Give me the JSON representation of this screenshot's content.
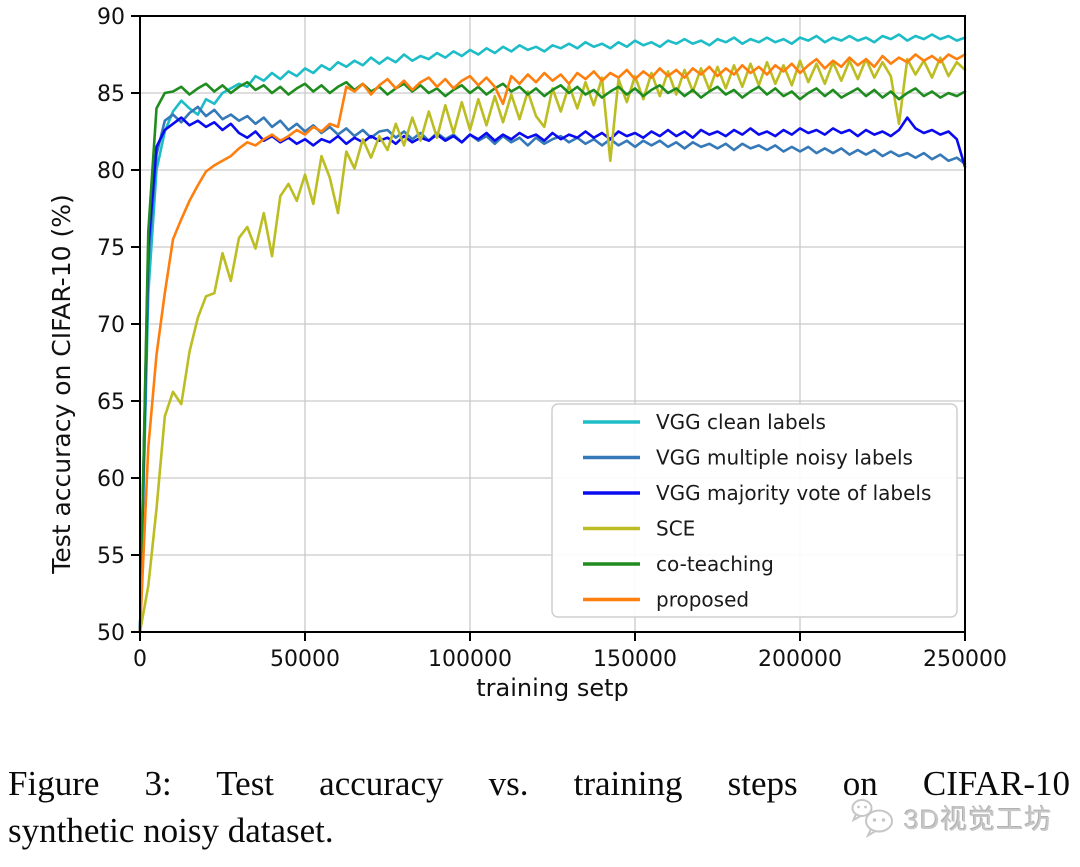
{
  "chart_data": {
    "type": "line",
    "title": "",
    "xlabel": "training setp",
    "ylabel": "Test accuracy on CIFAR-10 (%)",
    "xlim": [
      0,
      250000
    ],
    "ylim": [
      50,
      90
    ],
    "xticks": [
      0,
      50000,
      100000,
      150000,
      200000,
      250000
    ],
    "yticks": [
      50,
      55,
      60,
      65,
      70,
      75,
      80,
      85,
      90
    ],
    "grid": true,
    "grid_color": "#c9c9c9",
    "legend_position": "lower-right-inside",
    "x_step": 2500,
    "series": [
      {
        "name": "VGG clean labels",
        "color": "#1dbdc8",
        "values": [
          50,
          72,
          80,
          82.5,
          83.8,
          84.5,
          84.0,
          83.6,
          84.6,
          84.3,
          85.0,
          85.3,
          85.6,
          85.4,
          86.1,
          85.8,
          86.3,
          85.9,
          86.4,
          86.1,
          86.6,
          86.3,
          86.8,
          86.5,
          87.0,
          86.7,
          87.1,
          86.8,
          87.3,
          86.9,
          87.3,
          87.0,
          87.5,
          87.1,
          87.4,
          87.2,
          87.6,
          87.3,
          87.7,
          87.4,
          87.8,
          87.5,
          87.9,
          87.6,
          88.0,
          87.7,
          88.1,
          87.8,
          88.0,
          87.7,
          88.1,
          87.9,
          88.2,
          87.9,
          88.3,
          88.0,
          88.2,
          87.9,
          88.3,
          88.0,
          88.4,
          88.1,
          88.3,
          88.0,
          88.4,
          88.2,
          88.5,
          88.2,
          88.4,
          88.1,
          88.5,
          88.3,
          88.6,
          88.2,
          88.5,
          88.3,
          88.6,
          88.3,
          88.5,
          88.2,
          88.6,
          88.4,
          88.7,
          88.3,
          88.6,
          88.4,
          88.7,
          88.4,
          88.6,
          88.3,
          88.7,
          88.5,
          88.8,
          88.4,
          88.7,
          88.5,
          88.8,
          88.5,
          88.7,
          88.4,
          88.6
        ]
      },
      {
        "name": "VGG multiple noisy labels",
        "color": "#3579b8",
        "values": [
          50,
          74,
          81,
          83.2,
          83.6,
          83.1,
          83.7,
          84.1,
          83.5,
          83.9,
          83.3,
          83.6,
          83.2,
          83.5,
          83.0,
          83.4,
          82.8,
          83.2,
          82.6,
          83.0,
          82.5,
          82.9,
          82.4,
          82.8,
          82.3,
          82.7,
          82.2,
          82.6,
          82.1,
          82.5,
          82.6,
          82.1,
          82.5,
          82.0,
          82.4,
          81.9,
          82.4,
          82.0,
          82.3,
          81.8,
          82.3,
          81.9,
          82.2,
          81.7,
          82.2,
          81.8,
          82.1,
          81.6,
          82.1,
          81.7,
          82.0,
          82.2,
          81.8,
          82.1,
          81.7,
          82.0,
          81.6,
          82.0,
          81.6,
          81.9,
          81.5,
          81.9,
          81.6,
          81.9,
          81.5,
          81.8,
          81.4,
          81.8,
          81.5,
          81.7,
          81.4,
          81.7,
          81.3,
          81.7,
          81.4,
          81.6,
          81.3,
          81.6,
          81.2,
          81.5,
          81.2,
          81.5,
          81.1,
          81.4,
          81.1,
          81.4,
          81.0,
          81.3,
          81.0,
          81.3,
          80.9,
          81.2,
          80.9,
          81.1,
          80.8,
          81.1,
          80.7,
          81.0,
          80.6,
          80.8,
          80.4
        ]
      },
      {
        "name": "VGG majority vote of labels",
        "color": "#0b0bf0",
        "values": [
          50,
          75,
          81.5,
          82.6,
          83.0,
          83.4,
          82.9,
          83.2,
          82.8,
          83.1,
          82.6,
          83.0,
          82.4,
          82.1,
          82.5,
          81.9,
          82.2,
          81.8,
          82.1,
          81.7,
          82.0,
          81.6,
          82.0,
          81.8,
          82.2,
          81.7,
          82.1,
          81.8,
          82.2,
          81.9,
          82.1,
          81.7,
          82.2,
          81.8,
          82.1,
          81.9,
          82.3,
          81.9,
          82.2,
          81.8,
          82.3,
          82.0,
          82.4,
          81.9,
          82.3,
          82.0,
          82.4,
          82.1,
          82.3,
          81.9,
          82.4,
          82.0,
          82.3,
          82.1,
          82.5,
          82.1,
          82.4,
          82.0,
          82.5,
          82.2,
          82.4,
          82.1,
          82.5,
          82.2,
          82.6,
          82.2,
          82.5,
          82.1,
          82.6,
          82.3,
          82.5,
          82.2,
          82.6,
          82.3,
          82.7,
          82.3,
          82.5,
          82.2,
          82.6,
          82.3,
          82.7,
          82.4,
          82.6,
          82.3,
          82.7,
          82.4,
          82.6,
          82.2,
          82.6,
          82.3,
          82.5,
          82.2,
          82.6,
          83.4,
          82.7,
          82.4,
          82.6,
          82.3,
          82.5,
          82.0,
          80.2
        ]
      },
      {
        "name": "SCE",
        "color": "#bcbd22",
        "values": [
          50,
          53,
          58,
          64,
          65.6,
          64.8,
          68.2,
          70.4,
          71.8,
          72.0,
          74.6,
          72.8,
          75.6,
          76.3,
          74.9,
          77.2,
          74.4,
          78.3,
          79.1,
          78.0,
          79.7,
          77.8,
          80.9,
          79.5,
          77.2,
          81.2,
          80.1,
          82.0,
          80.8,
          82.2,
          81.3,
          83.0,
          81.6,
          83.4,
          81.9,
          83.8,
          82.1,
          84.2,
          82.4,
          84.4,
          82.6,
          84.6,
          82.9,
          84.8,
          83.1,
          84.9,
          83.3,
          85.1,
          83.5,
          82.8,
          85.3,
          83.8,
          85.5,
          84.0,
          85.7,
          84.2,
          86.0,
          80.6,
          85.9,
          84.4,
          86.1,
          84.6,
          86.3,
          84.8,
          86.4,
          84.9,
          86.5,
          85.1,
          86.6,
          85.2,
          86.7,
          85.3,
          86.8,
          85.4,
          86.9,
          85.5,
          87.0,
          85.6,
          86.8,
          85.5,
          87.1,
          85.7,
          86.9,
          85.6,
          87.0,
          85.8,
          87.1,
          85.9,
          87.2,
          86.0,
          87.0,
          86.1,
          83.0,
          87.2,
          86.2,
          87.1,
          86.0,
          87.3,
          86.1,
          87.0,
          86.5
        ]
      },
      {
        "name": "co-teaching",
        "color": "#1f8c1f",
        "values": [
          50,
          76,
          84,
          85.0,
          85.1,
          85.4,
          84.9,
          85.3,
          85.6,
          85.1,
          85.5,
          85.0,
          85.4,
          85.7,
          85.2,
          85.5,
          85.0,
          85.4,
          84.9,
          85.3,
          85.6,
          85.1,
          85.5,
          85.0,
          85.4,
          85.7,
          85.2,
          85.6,
          85.1,
          85.4,
          84.9,
          85.3,
          85.6,
          85.1,
          85.5,
          85.0,
          85.3,
          84.8,
          85.2,
          85.5,
          85.0,
          85.4,
          84.9,
          85.3,
          85.6,
          85.1,
          85.4,
          84.9,
          85.3,
          84.8,
          85.2,
          85.5,
          85.0,
          85.4,
          84.9,
          85.2,
          84.7,
          85.1,
          85.4,
          84.9,
          85.3,
          84.8,
          85.2,
          85.5,
          85.0,
          85.3,
          84.8,
          85.2,
          84.7,
          85.1,
          85.4,
          84.9,
          85.2,
          84.7,
          85.1,
          85.4,
          84.9,
          85.3,
          84.8,
          85.1,
          84.6,
          85.0,
          85.3,
          84.8,
          85.2,
          84.7,
          85.0,
          85.3,
          84.8,
          85.2,
          84.7,
          85.1,
          84.6,
          85.0,
          85.3,
          84.8,
          85.1,
          84.7,
          85.0,
          84.8,
          85.1
        ]
      },
      {
        "name": "proposed",
        "color": "#ff7f0e",
        "values": [
          50,
          62,
          68,
          72,
          75.5,
          76.8,
          78.0,
          79.0,
          79.9,
          80.3,
          80.6,
          80.9,
          81.4,
          81.8,
          81.6,
          82.0,
          82.3,
          81.9,
          82.2,
          82.6,
          82.3,
          82.8,
          82.5,
          83.0,
          82.8,
          85.4,
          85.1,
          85.6,
          84.9,
          85.5,
          85.9,
          85.3,
          85.8,
          85.2,
          85.7,
          86.0,
          85.4,
          85.9,
          85.3,
          85.8,
          86.1,
          85.5,
          86.0,
          85.4,
          84.3,
          86.1,
          85.6,
          86.2,
          85.7,
          86.3,
          85.8,
          86.2,
          85.6,
          86.3,
          85.9,
          86.4,
          85.8,
          86.3,
          86.0,
          86.5,
          85.9,
          86.4,
          86.0,
          86.6,
          86.1,
          86.5,
          86.0,
          86.6,
          86.2,
          86.7,
          86.1,
          86.6,
          86.2,
          86.8,
          86.3,
          86.7,
          86.2,
          86.8,
          86.4,
          86.9,
          86.3,
          86.8,
          87.2,
          86.6,
          87.1,
          86.7,
          87.3,
          86.8,
          87.2,
          86.7,
          87.4,
          86.9,
          87.3,
          87.0,
          87.5,
          87.1,
          87.4,
          87.0,
          87.5,
          87.2,
          87.5
        ]
      }
    ]
  },
  "caption": {
    "line1": "Figure 3: Test accuracy vs. training steps on CIFAR-10",
    "line2": "synthetic noisy dataset."
  },
  "watermark": {
    "text": "3D视觉工坊",
    "icon": "wechat-bubbles-icon",
    "color": "#c7c7c7"
  }
}
